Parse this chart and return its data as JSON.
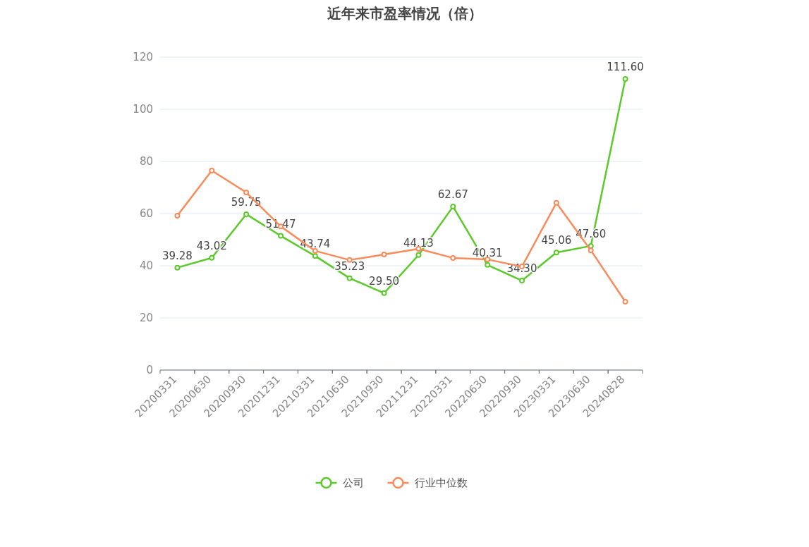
{
  "chart_data": {
    "type": "line",
    "title": "近年来市盈率情况（倍）",
    "categories": [
      "20200331",
      "20200630",
      "20200930",
      "20201231",
      "20210331",
      "20210630",
      "20210930",
      "20211231",
      "20220331",
      "20220630",
      "20220930",
      "20230331",
      "20230630",
      "20240828"
    ],
    "series": [
      {
        "name": "公司",
        "color": "#5cc92a",
        "values": [
          39.28,
          43.02,
          59.75,
          51.47,
          43.74,
          35.23,
          29.5,
          44.13,
          62.67,
          40.31,
          34.3,
          45.06,
          47.6,
          111.6
        ],
        "value_labels": [
          "39.28",
          "43.02",
          "59.75",
          "51.47",
          "43.74",
          "35.23",
          "29.50",
          "44.13",
          "62.67",
          "40.31",
          "34.30",
          "45.06",
          "47.60",
          "111.60"
        ]
      },
      {
        "name": "行业中位数",
        "color": "#f98b5b",
        "values": [
          59.2,
          76.5,
          68.1,
          55.1,
          45.7,
          42.2,
          44.3,
          46.5,
          43.0,
          42.4,
          39.7,
          64.1,
          45.9,
          26.2
        ]
      }
    ],
    "ylim": [
      0,
      120
    ],
    "yticks": [
      0,
      20,
      40,
      60,
      80,
      100,
      120
    ],
    "grid": "y",
    "legend": "bottom",
    "marker": "circle",
    "line_style": "solid"
  }
}
